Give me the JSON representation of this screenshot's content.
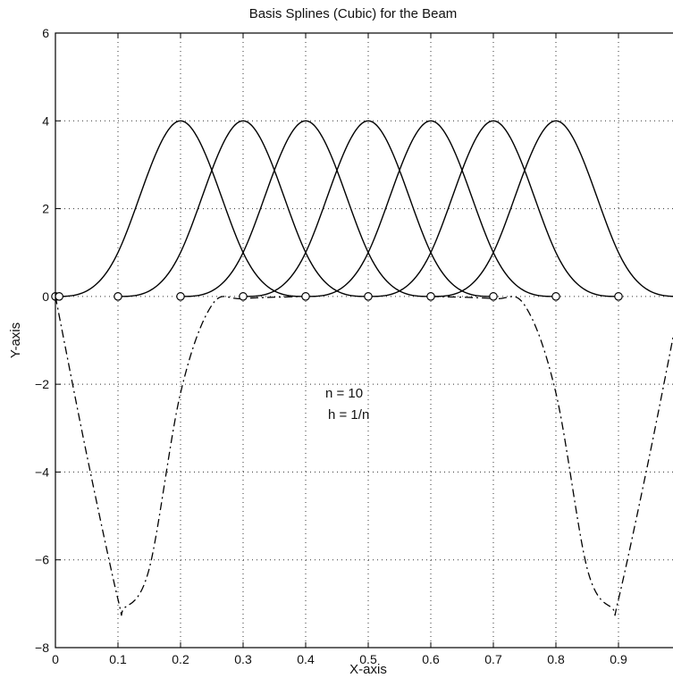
{
  "chart_data": {
    "type": "line",
    "title": "Basis Splines (Cubic) for the Beam",
    "xlabel": "X-axis",
    "ylabel": "Y-axis",
    "xlim": [
      0,
      1
    ],
    "ylim": [
      -8,
      6
    ],
    "grid": true,
    "xticks": [
      0,
      0.1,
      0.2,
      0.3,
      0.4,
      0.5,
      0.6,
      0.7,
      0.8,
      0.9
    ],
    "xtick_labels": [
      "0",
      "0.1",
      "0.2",
      "0.3",
      "0.4",
      "0.5",
      "0.6",
      "0.7",
      "0.8",
      "0.9"
    ],
    "yticks": [
      -8,
      -6,
      -4,
      -2,
      0,
      2,
      4,
      6
    ],
    "ytick_labels": [
      "−8",
      "−6",
      "−4",
      "−2",
      "0",
      "2",
      "4",
      "6"
    ],
    "knots": {
      "x": [
        0,
        0.1,
        0.2,
        0.3,
        0.4,
        0.5,
        0.6,
        0.7,
        0.8,
        0.9,
        1.0
      ],
      "y": [
        0,
        0,
        0,
        0,
        0,
        0,
        0,
        0,
        0,
        0,
        0
      ]
    },
    "basis_splines": {
      "h": 0.1,
      "peak": 4,
      "centers": [
        0.2,
        0.3,
        0.4,
        0.5,
        0.6,
        0.7,
        0.8
      ]
    },
    "boundary_splines": [
      {
        "x": [
          0,
          0.05,
          0.1,
          0.11,
          0.15,
          0.2,
          0.25,
          0.3,
          0.4
        ],
        "y": [
          0,
          -3.6,
          -6.9,
          -7.1,
          -6.2,
          -2.2,
          -0.2,
          -0.05,
          0
        ]
      },
      {
        "x": [
          0.6,
          0.7,
          0.75,
          0.8,
          0.85,
          0.89,
          0.9,
          0.95,
          1.0
        ],
        "y": [
          0,
          -0.05,
          -0.2,
          -2.2,
          -6.2,
          -7.1,
          -6.9,
          -3.6,
          0
        ]
      }
    ],
    "annotations": [
      "n = 10",
      "h = 1/n"
    ]
  }
}
